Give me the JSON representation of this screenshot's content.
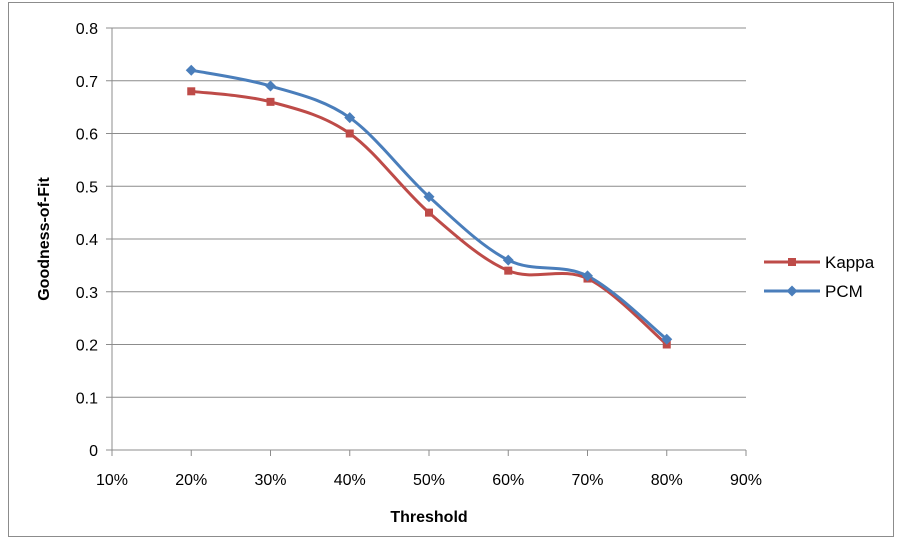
{
  "chart_data": {
    "type": "line",
    "xlabel": "Threshold",
    "ylabel": "Goodness-of-Fit",
    "x_ticks": [
      "10%",
      "20%",
      "30%",
      "40%",
      "50%",
      "60%",
      "70%",
      "80%",
      "90%"
    ],
    "xlim": [
      10,
      90
    ],
    "y_ticks": [
      "0",
      "0.1",
      "0.2",
      "0.3",
      "0.4",
      "0.5",
      "0.6",
      "0.7",
      "0.8"
    ],
    "ylim": [
      0,
      0.8
    ],
    "grid": "horizontal",
    "legend_position": "right",
    "x": [
      20,
      30,
      40,
      50,
      60,
      70,
      80
    ],
    "series": [
      {
        "name": "Kappa",
        "color": "#be4b48",
        "marker": "square",
        "values": [
          0.68,
          0.66,
          0.6,
          0.45,
          0.34,
          0.325,
          0.2
        ]
      },
      {
        "name": "PCM",
        "color": "#4a7ebb",
        "marker": "diamond",
        "values": [
          0.72,
          0.69,
          0.63,
          0.48,
          0.36,
          0.33,
          0.21
        ]
      }
    ]
  }
}
